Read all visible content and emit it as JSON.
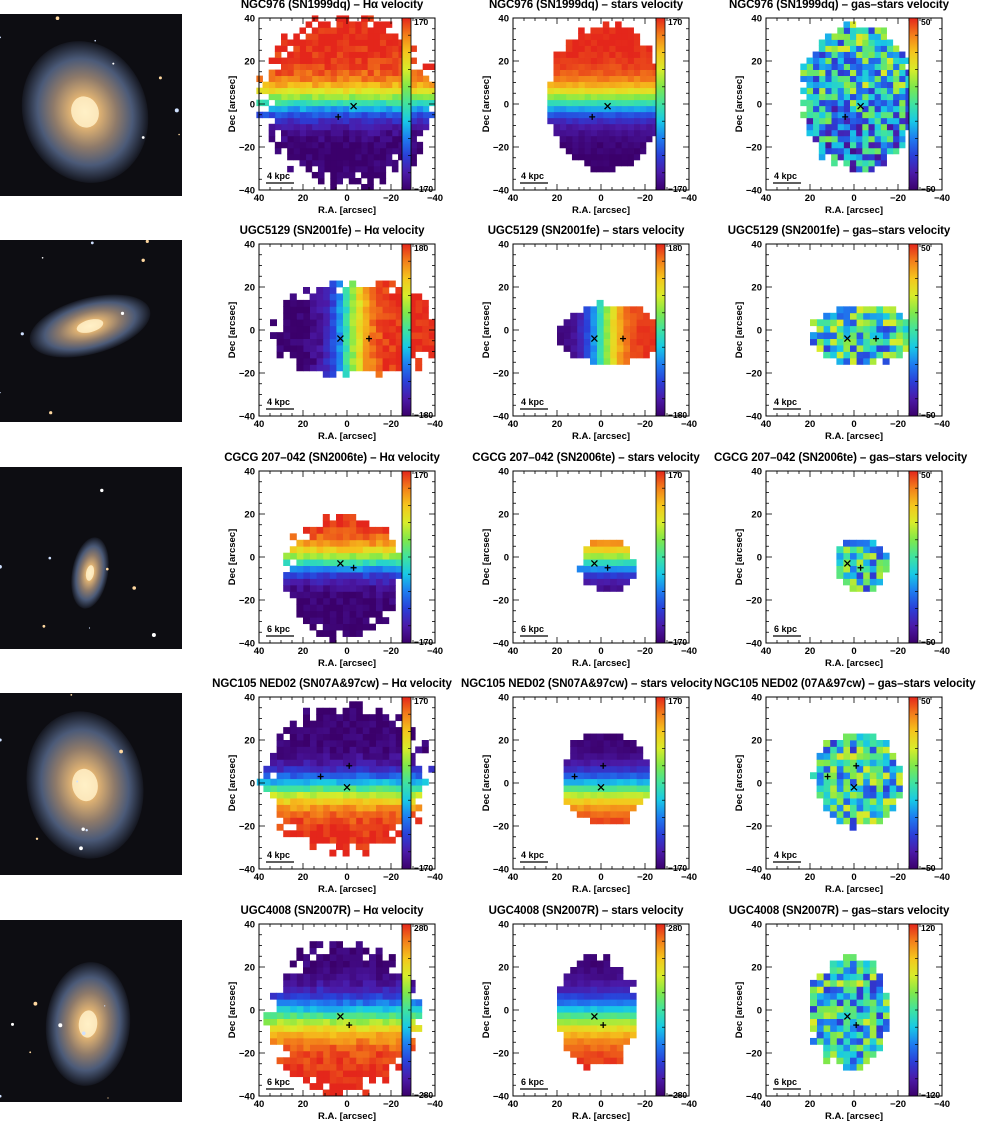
{
  "common": {
    "xlabel": "R.A. [arcsec]",
    "ylabel": "Dec [arcsec]",
    "xticks": [
      "40",
      "20",
      "0",
      "−20",
      "−40"
    ],
    "yticks": [
      "40",
      "20",
      "0",
      "−20",
      "−40"
    ]
  },
  "colorscale": [
    "#3b006b",
    "#4b1aa8",
    "#2a3fd8",
    "#1e7cf0",
    "#18c9e6",
    "#3fe3a0",
    "#7fe84a",
    "#d8ec2a",
    "#f5c61c",
    "#f37f1a",
    "#e4261b"
  ],
  "rows": [
    {
      "galaxy_thumb": "ngc976-image",
      "panels": [
        {
          "title": "NGC976 (SN1999dq) – Hα velocity",
          "cb_max": "170",
          "cb_min": "−170",
          "scale": "4 kpc"
        },
        {
          "title": "NGC976 (SN1999dq) – stars velocity",
          "cb_max": "170",
          "cb_min": "−170",
          "scale": "4 kpc"
        },
        {
          "title": "NGC976 (SN1999dq) – gas–stars velocity",
          "cb_max": "50",
          "cb_min": "−50",
          "scale": "4 kpc"
        }
      ]
    },
    {
      "galaxy_thumb": "ugc5129-image",
      "panels": [
        {
          "title": "UGC5129 (SN2001fe) – Hα velocity",
          "cb_max": "180",
          "cb_min": "−180",
          "scale": "4 kpc"
        },
        {
          "title": "UGC5129 (SN2001fe) – stars velocity",
          "cb_max": "180",
          "cb_min": "−180",
          "scale": "4 kpc"
        },
        {
          "title": "UGC5129 (SN2001fe) – gas–stars velocity",
          "cb_max": "50",
          "cb_min": "−50",
          "scale": "4 kpc"
        }
      ]
    },
    {
      "galaxy_thumb": "cgcg207-042-image",
      "panels": [
        {
          "title": "CGCG 207–042 (SN2006te) – Hα velocity",
          "cb_max": "170",
          "cb_min": "−170",
          "scale": "6 kpc"
        },
        {
          "title": "CGCG 207–042 (SN2006te) – stars velocity",
          "cb_max": "170",
          "cb_min": "−170",
          "scale": "6 kpc"
        },
        {
          "title": "CGCG 207–042 (SN2006te) – gas–stars velocity",
          "cb_max": "50",
          "cb_min": "−50",
          "scale": "6 kpc"
        }
      ]
    },
    {
      "galaxy_thumb": "ngc105-ned02-image",
      "panels": [
        {
          "title": "NGC105 NED02 (SN07A&97cw) – Hα velocity",
          "cb_max": "170",
          "cb_min": "−170",
          "scale": "4 kpc"
        },
        {
          "title": "NGC105 NED02 (SN07A&97cw) – stars velocity",
          "cb_max": "170",
          "cb_min": "−170",
          "scale": "4 kpc"
        },
        {
          "title": "NGC105 NED02 (07A&97cw) – gas–stars velocity",
          "cb_max": "50",
          "cb_min": "−50",
          "scale": "4 kpc"
        }
      ]
    },
    {
      "galaxy_thumb": "ugc4008-image",
      "panels": [
        {
          "title": "UGC4008 (SN2007R) – Hα velocity",
          "cb_max": "280",
          "cb_min": "−280",
          "scale": "6 kpc"
        },
        {
          "title": "UGC4008 (SN2007R) – stars velocity",
          "cb_max": "280",
          "cb_min": "−280",
          "scale": "6 kpc"
        },
        {
          "title": "UGC4008 (SN2007R) – gas–stars velocity",
          "cb_max": "120",
          "cb_min": "−120",
          "scale": "6 kpc"
        }
      ]
    }
  ]
}
